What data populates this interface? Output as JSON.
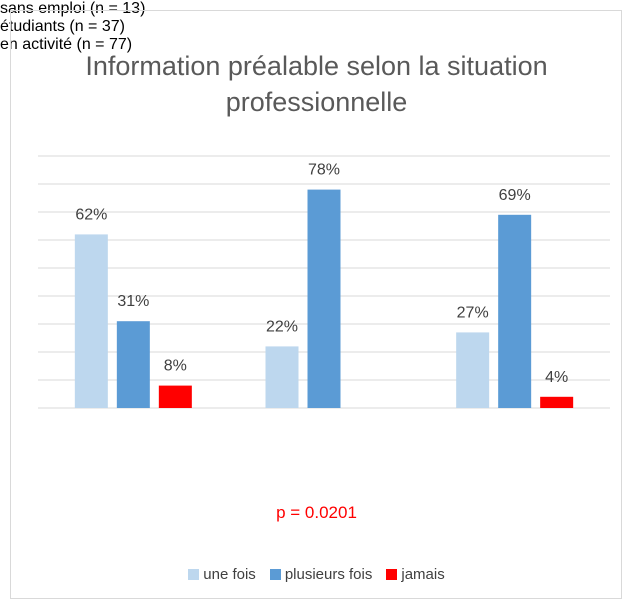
{
  "chart_data": {
    "type": "bar",
    "title": "Information préalable selon la situation professionnelle",
    "categories": [
      "sans emploi (n = 13)",
      "étudiants (n = 37)",
      "en activité (n = 77)"
    ],
    "series": [
      {
        "name": "une fois",
        "color": "#bdd7ee",
        "values": [
          62,
          22,
          27
        ],
        "value_labels": [
          "62%",
          "22%",
          "27%"
        ]
      },
      {
        "name": "plusieurs fois",
        "color": "#5b9bd5",
        "values": [
          31,
          78,
          69
        ],
        "value_labels": [
          "31%",
          "78%",
          "69%"
        ]
      },
      {
        "name": "jamais",
        "color": "#ff0000",
        "values": [
          8,
          null,
          4
        ],
        "value_labels": [
          "8%",
          null,
          "4%"
        ]
      }
    ],
    "annotation": "p = 0.0201",
    "ylim": [
      0,
      90
    ],
    "yticks": [
      0,
      10,
      20,
      30,
      40,
      50,
      60,
      70,
      80,
      90
    ],
    "grid": true,
    "legend": "bottom"
  }
}
